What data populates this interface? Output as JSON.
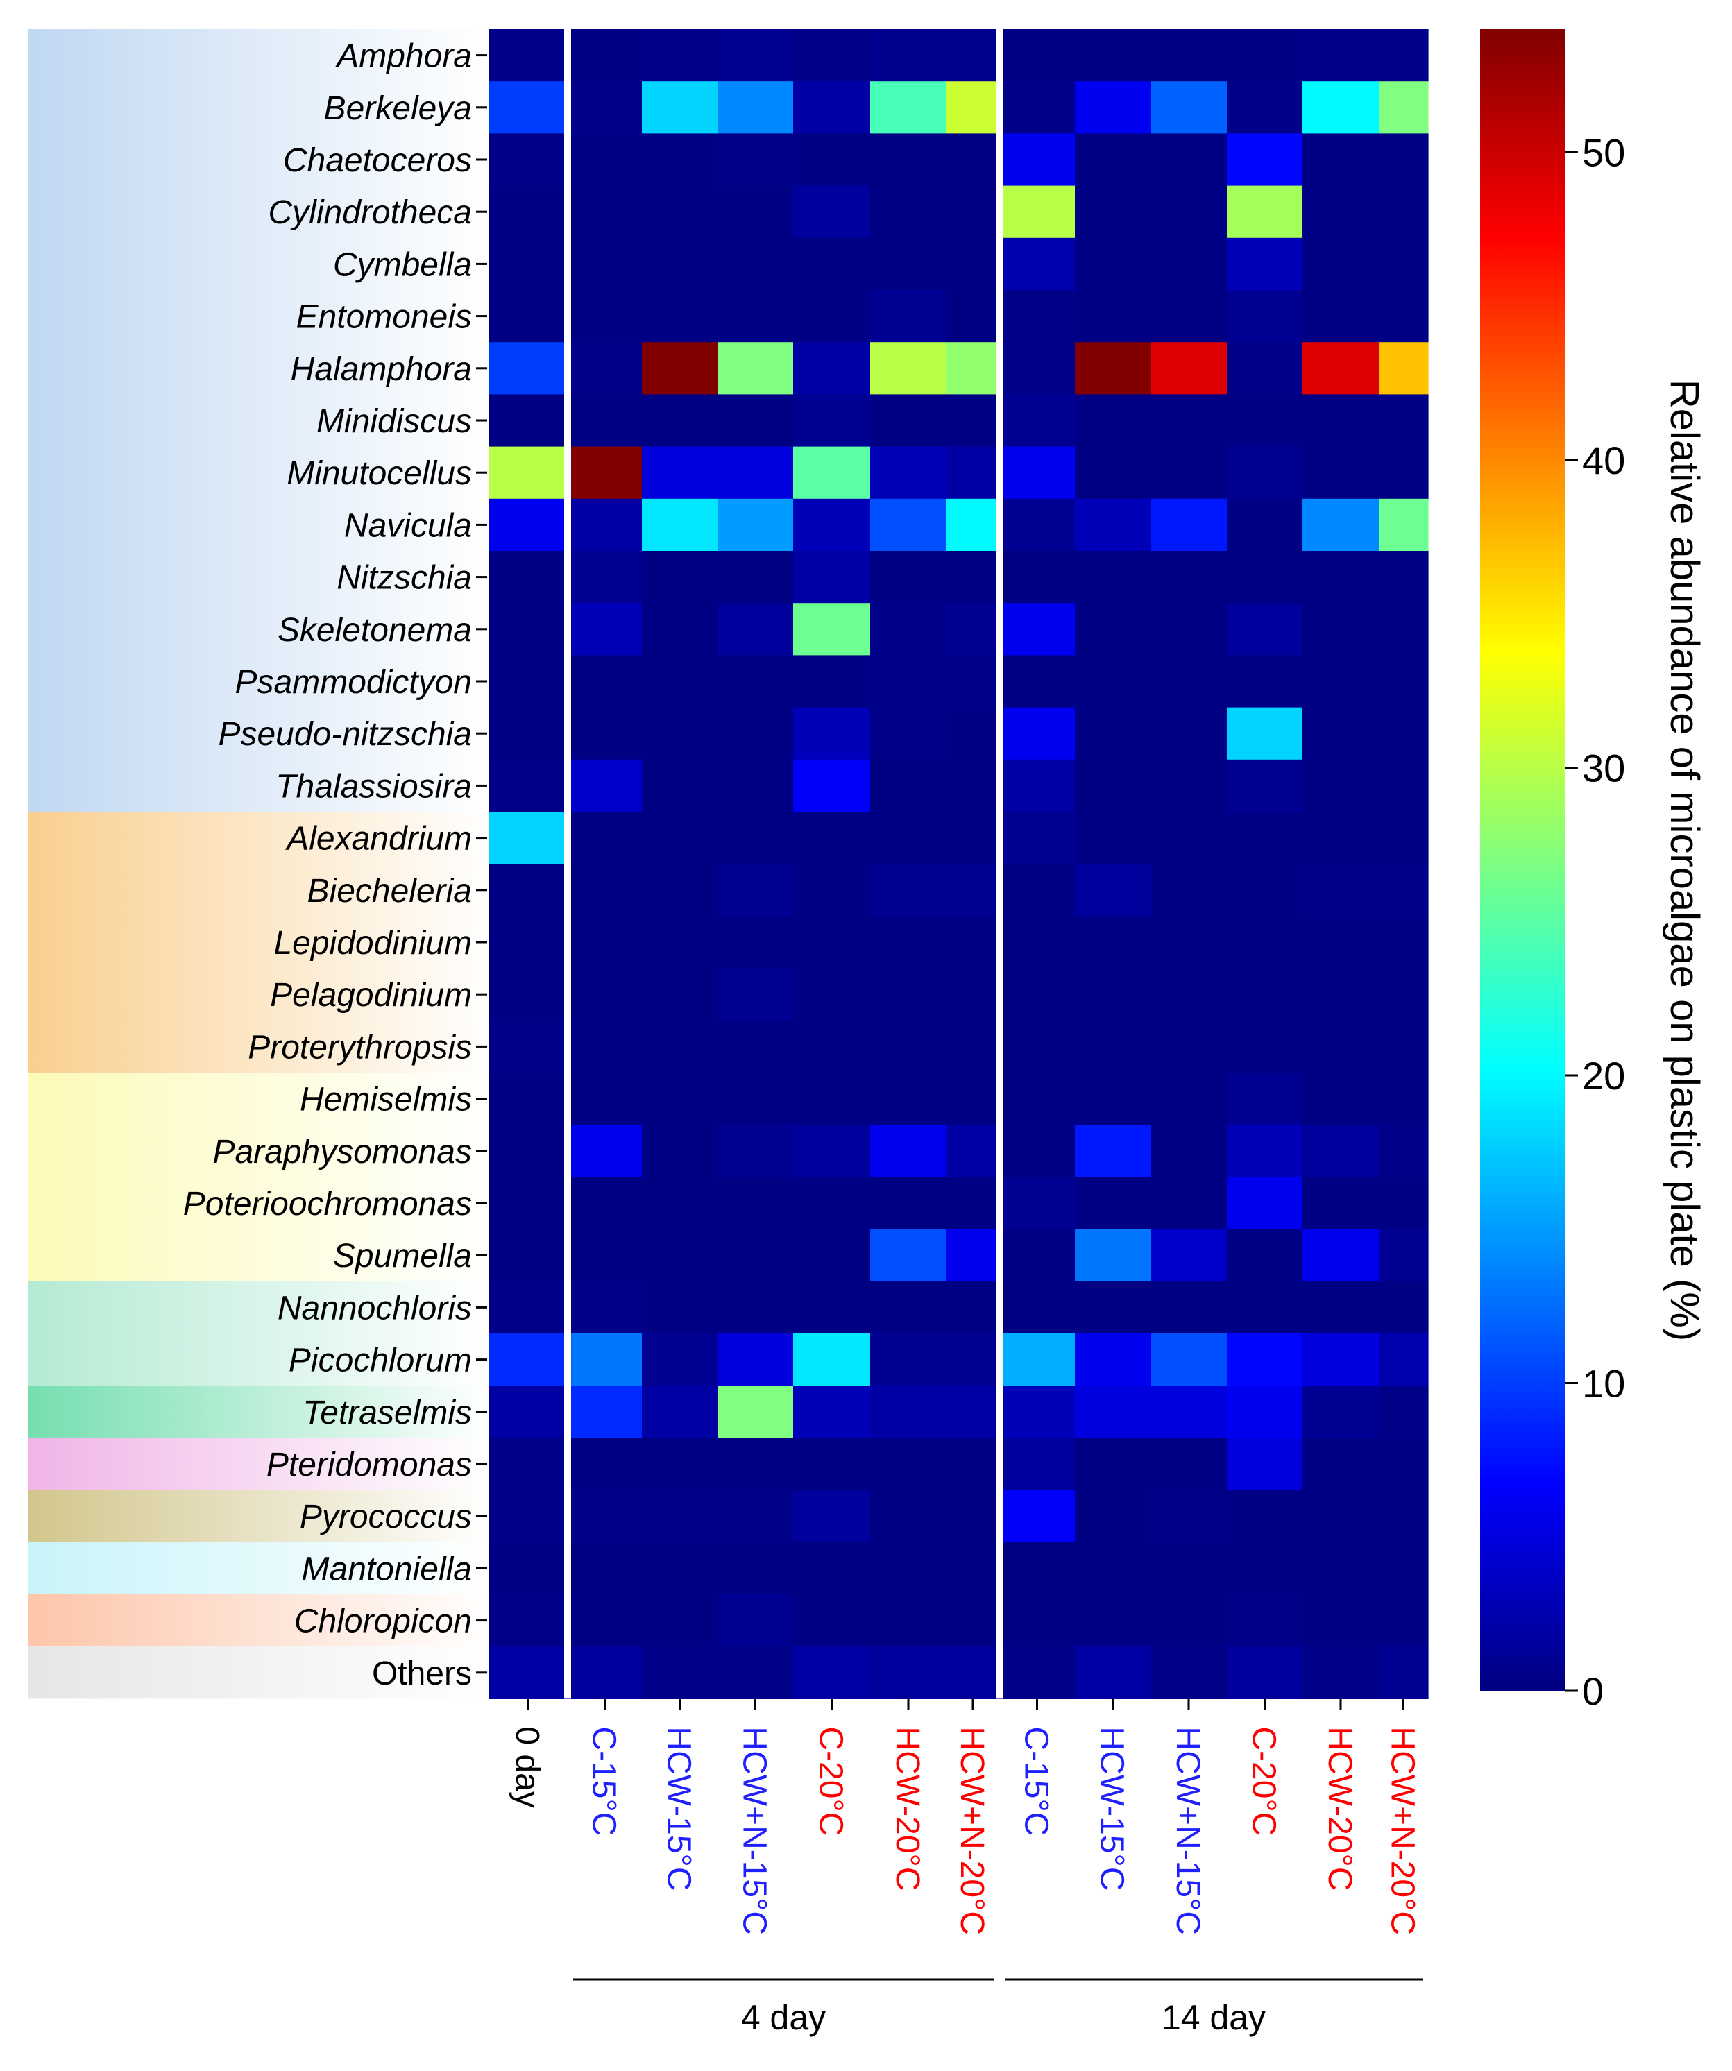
{
  "chart_data": {
    "type": "heatmap",
    "title": "",
    "colorbar_label": "Relative abundance of microalgae on plastic plate  (%)",
    "colorbar_ticks": [
      0,
      10,
      20,
      30,
      40,
      50
    ],
    "color_range": [
      0,
      54
    ],
    "colormap": "jet",
    "rows": [
      "Amphora",
      "Berkeleya",
      "Chaetoceros",
      "Cylindrotheca",
      "Cymbella",
      "Entomoneis",
      "Halamphora",
      "Minidiscus",
      "Minutocellus",
      "Navicula",
      "Nitzschia",
      "Skeletonema",
      "Psammodictyon",
      "Pseudo-nitzschia",
      "Thalassiosira",
      "Alexandrium",
      "Biecheleria",
      "Lepidodinium",
      "Pelagodinium",
      "Proterythropsis",
      "Hemiselmis",
      "Paraphysomonas",
      "Poterioochromonas",
      "Spumella",
      "Nannochloris",
      "Picochlorum",
      "Tetraselmis",
      "Pteridomonas",
      "Pyrococcus",
      "Mantoniella",
      "Chloropicon",
      "Others"
    ],
    "row_groups": [
      {
        "start": 0,
        "end": 14,
        "color": "#c0d8f2"
      },
      {
        "start": 15,
        "end": 19,
        "color": "#f9cf8f"
      },
      {
        "start": 20,
        "end": 23,
        "color": "#fcfab8"
      },
      {
        "start": 24,
        "end": 25,
        "color": "#b4ead4"
      },
      {
        "start": 26,
        "end": 26,
        "color": "#75deaf"
      },
      {
        "start": 27,
        "end": 27,
        "color": "#f0b5e6"
      },
      {
        "start": 28,
        "end": 28,
        "color": "#d2c68c"
      },
      {
        "start": 29,
        "end": 29,
        "color": "#c8f4fa"
      },
      {
        "start": 30,
        "end": 30,
        "color": "#fdc5a9"
      },
      {
        "start": 31,
        "end": 31,
        "color": "#e6e6e6"
      }
    ],
    "columns": [
      {
        "label": "0 day",
        "color": "#000000"
      },
      {
        "label": "C-15°C",
        "color": "#2020ff"
      },
      {
        "label": "HCW-15°C",
        "color": "#2020ff"
      },
      {
        "label": "HCW+N-15°C",
        "color": "#2020ff"
      },
      {
        "label": "C-20°C",
        "color": "#ff0000"
      },
      {
        "label": "HCW-20°C",
        "color": "#ff0000"
      },
      {
        "label": "HCW+N-20°C",
        "color": "#ff0000"
      },
      {
        "label": "C-15°C",
        "color": "#2020ff"
      },
      {
        "label": "HCW-15°C",
        "color": "#2020ff"
      },
      {
        "label": "HCW+N-15°C",
        "color": "#2020ff"
      },
      {
        "label": "C-20°C",
        "color": "#ff0000"
      },
      {
        "label": "HCW-20°C",
        "color": "#ff0000"
      },
      {
        "label": "HCW+N-20°C",
        "color": "#ff0000"
      }
    ],
    "column_groups": [
      {
        "label": "4 day",
        "start": 1,
        "end": 6
      },
      {
        "label": "14 day",
        "start": 7,
        "end": 12
      }
    ],
    "values": [
      [
        0.5,
        0.3,
        0.5,
        1.0,
        0.5,
        0.8,
        0.8,
        0.3,
        0.3,
        0.3,
        0.3,
        0.5,
        0.5
      ],
      [
        10.0,
        0.5,
        18.0,
        14.0,
        2.0,
        24.0,
        31.0,
        0.5,
        6.0,
        12.0,
        0.5,
        20.0,
        27.0
      ],
      [
        0.5,
        0.3,
        0.3,
        0.5,
        0.3,
        0.3,
        0.3,
        6.0,
        0.3,
        0.3,
        7.0,
        0.3,
        0.3
      ],
      [
        0.3,
        0.3,
        0.3,
        0.3,
        1.5,
        0.3,
        0.3,
        30.0,
        0.3,
        0.3,
        29.0,
        0.3,
        0.3
      ],
      [
        0.3,
        0.3,
        0.3,
        0.3,
        0.3,
        0.3,
        0.3,
        2.5,
        0.3,
        0.3,
        3.0,
        0.3,
        0.3
      ],
      [
        0.3,
        0.3,
        0.3,
        0.3,
        0.3,
        1.0,
        0.3,
        0.5,
        0.3,
        0.3,
        1.0,
        0.3,
        0.3
      ],
      [
        10.0,
        0.5,
        54.0,
        27.0,
        2.0,
        30.0,
        28.0,
        0.5,
        54.0,
        49.0,
        0.5,
        49.0,
        37.0
      ],
      [
        0.3,
        0.3,
        0.3,
        0.3,
        1.0,
        0.3,
        0.3,
        1.0,
        0.3,
        0.3,
        0.3,
        0.3,
        0.3
      ],
      [
        30.0,
        54.0,
        5.0,
        5.0,
        25.0,
        3.0,
        2.0,
        6.0,
        0.3,
        0.3,
        1.0,
        0.3,
        0.3
      ],
      [
        6.0,
        2.0,
        19.0,
        15.0,
        3.0,
        11.0,
        20.0,
        1.0,
        3.0,
        8.0,
        0.3,
        14.0,
        26.0
      ],
      [
        0.3,
        1.0,
        0.3,
        0.3,
        2.0,
        0.3,
        0.3,
        0.3,
        0.3,
        0.3,
        0.3,
        0.3,
        0.3
      ],
      [
        0.3,
        3.0,
        0.3,
        1.5,
        26.0,
        0.5,
        1.0,
        6.0,
        0.3,
        0.3,
        1.5,
        0.3,
        0.3
      ],
      [
        0.3,
        0.3,
        0.3,
        0.3,
        0.3,
        0.5,
        0.5,
        0.3,
        0.3,
        0.3,
        0.3,
        0.3,
        0.3
      ],
      [
        0.3,
        0.3,
        0.3,
        0.3,
        3.0,
        0.5,
        0.3,
        6.0,
        0.3,
        0.3,
        18.0,
        0.3,
        0.3
      ],
      [
        0.5,
        4.0,
        0.3,
        0.3,
        6.5,
        0.3,
        0.3,
        2.0,
        0.3,
        0.3,
        1.0,
        0.3,
        0.3
      ],
      [
        18.0,
        0.3,
        0.3,
        0.3,
        0.3,
        0.3,
        0.3,
        1.0,
        0.3,
        0.3,
        0.3,
        0.3,
        0.3
      ],
      [
        0.3,
        0.3,
        0.3,
        1.0,
        0.3,
        1.0,
        1.0,
        0.3,
        1.5,
        0.3,
        0.3,
        0.5,
        0.5
      ],
      [
        0.3,
        0.3,
        0.3,
        0.3,
        0.3,
        0.3,
        0.3,
        0.3,
        0.3,
        0.3,
        0.3,
        0.3,
        0.3
      ],
      [
        0.3,
        0.3,
        0.3,
        1.0,
        0.3,
        0.3,
        0.3,
        0.3,
        0.3,
        0.3,
        0.3,
        0.3,
        0.3
      ],
      [
        0.5,
        0.3,
        0.3,
        0.3,
        0.3,
        0.3,
        0.3,
        0.3,
        0.3,
        0.3,
        0.3,
        0.3,
        0.3
      ],
      [
        0.3,
        0.3,
        0.3,
        0.3,
        0.3,
        0.3,
        0.3,
        0.3,
        0.3,
        0.3,
        1.0,
        0.3,
        0.3
      ],
      [
        0.3,
        6.0,
        0.3,
        1.0,
        1.5,
        6.0,
        2.0,
        0.3,
        8.0,
        0.3,
        3.0,
        1.5,
        0.5
      ],
      [
        0.3,
        0.3,
        0.3,
        0.3,
        0.3,
        0.3,
        0.3,
        1.0,
        0.3,
        0.3,
        6.0,
        0.3,
        0.3
      ],
      [
        0.3,
        0.3,
        0.3,
        0.3,
        0.3,
        11.0,
        6.0,
        0.3,
        13.0,
        4.0,
        0.3,
        6.0,
        1.0
      ],
      [
        0.5,
        0.5,
        0.3,
        0.3,
        0.3,
        0.3,
        0.3,
        0.3,
        0.3,
        0.3,
        0.3,
        0.3,
        0.3
      ],
      [
        9.0,
        13.0,
        1.0,
        5.0,
        19.0,
        1.0,
        1.0,
        16.0,
        6.0,
        11.0,
        7.0,
        5.0,
        2.5
      ],
      [
        2.0,
        9.0,
        2.0,
        27.0,
        3.0,
        2.0,
        2.0,
        3.0,
        5.0,
        5.0,
        6.0,
        1.0,
        0.5
      ],
      [
        0.5,
        0.3,
        0.3,
        0.3,
        0.3,
        0.3,
        0.3,
        1.5,
        0.3,
        0.3,
        5.0,
        0.3,
        0.3
      ],
      [
        0.5,
        0.5,
        0.5,
        0.5,
        1.5,
        0.3,
        0.3,
        6.5,
        0.3,
        0.5,
        0.3,
        0.3,
        0.3
      ],
      [
        0.3,
        0.3,
        0.3,
        0.3,
        0.3,
        0.3,
        0.3,
        0.3,
        0.3,
        0.3,
        0.3,
        0.3,
        0.3
      ],
      [
        0.5,
        0.3,
        0.3,
        1.0,
        0.3,
        0.3,
        0.3,
        0.3,
        0.3,
        0.3,
        0.5,
        0.3,
        0.3
      ],
      [
        2.0,
        1.5,
        0.5,
        0.5,
        2.0,
        1.5,
        1.5,
        0.5,
        2.0,
        0.5,
        1.5,
        0.5,
        1.0
      ]
    ]
  }
}
